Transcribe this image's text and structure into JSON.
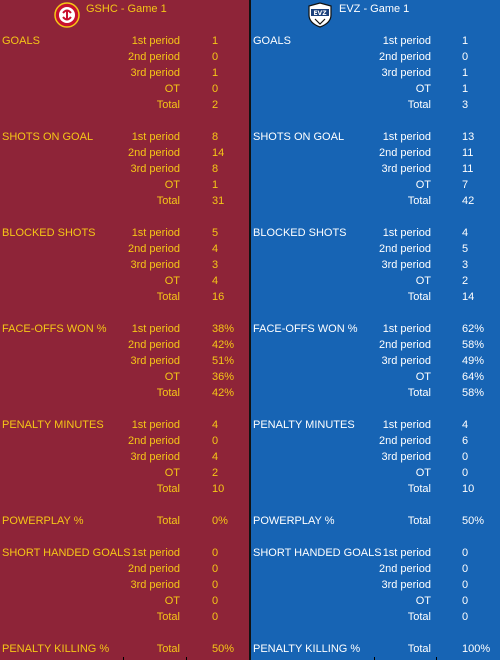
{
  "teams": [
    {
      "title": "GSHC - Game 1",
      "logo": "geneve-servette-logo",
      "sections": [
        {
          "category": "GOALS",
          "rows": [
            {
              "period": "1st period",
              "value": "1"
            },
            {
              "period": "2nd period",
              "value": "0"
            },
            {
              "period": "3rd period",
              "value": "1"
            },
            {
              "period": "OT",
              "value": "0"
            },
            {
              "period": "Total",
              "value": "2"
            }
          ]
        },
        {
          "category": "SHOTS ON GOAL",
          "rows": [
            {
              "period": "1st period",
              "value": "8"
            },
            {
              "period": "2nd period",
              "value": "14"
            },
            {
              "period": "3rd period",
              "value": "8"
            },
            {
              "period": "OT",
              "value": "1"
            },
            {
              "period": "Total",
              "value": "31"
            }
          ]
        },
        {
          "category": "BLOCKED SHOTS",
          "rows": [
            {
              "period": "1st period",
              "value": "5"
            },
            {
              "period": "2nd period",
              "value": "4"
            },
            {
              "period": "3rd period",
              "value": "3"
            },
            {
              "period": "OT",
              "value": "4"
            },
            {
              "period": "Total",
              "value": "16"
            }
          ]
        },
        {
          "category": "FACE-OFFS WON %",
          "rows": [
            {
              "period": "1st period",
              "value": "38%"
            },
            {
              "period": "2nd period",
              "value": "42%"
            },
            {
              "period": "3rd period",
              "value": "51%"
            },
            {
              "period": "OT",
              "value": "36%"
            },
            {
              "period": "Total",
              "value": "42%"
            }
          ]
        },
        {
          "category": "PENALTY MINUTES",
          "rows": [
            {
              "period": "1st period",
              "value": "4"
            },
            {
              "period": "2nd period",
              "value": "0"
            },
            {
              "period": "3rd period",
              "value": "4"
            },
            {
              "period": "OT",
              "value": "2"
            },
            {
              "period": "Total",
              "value": "10"
            }
          ]
        },
        {
          "category": "POWERPLAY %",
          "rows": [
            {
              "period": "Total",
              "value": "0%"
            }
          ]
        },
        {
          "category": "SHORT HANDED GOALS",
          "rows": [
            {
              "period": "1st period",
              "value": "0"
            },
            {
              "period": "2nd period",
              "value": "0"
            },
            {
              "period": "3rd period",
              "value": "0"
            },
            {
              "period": "OT",
              "value": "0"
            },
            {
              "period": "Total",
              "value": "0"
            }
          ]
        },
        {
          "category": "PENALTY KILLING %",
          "rows": [
            {
              "period": "Total",
              "value": "50%"
            }
          ]
        }
      ]
    },
    {
      "title": "EVZ - Game 1",
      "logo": "evz-shield-logo",
      "sections": [
        {
          "category": "GOALS",
          "rows": [
            {
              "period": "1st period",
              "value": "1"
            },
            {
              "period": "2nd period",
              "value": "0"
            },
            {
              "period": "3rd period",
              "value": "1"
            },
            {
              "period": "OT",
              "value": "1"
            },
            {
              "period": "Total",
              "value": "3"
            }
          ]
        },
        {
          "category": "SHOTS ON GOAL",
          "rows": [
            {
              "period": "1st period",
              "value": "13"
            },
            {
              "period": "2nd period",
              "value": "11"
            },
            {
              "period": "3rd period",
              "value": "11"
            },
            {
              "period": "OT",
              "value": "7"
            },
            {
              "period": "Total",
              "value": "42"
            }
          ]
        },
        {
          "category": "BLOCKED SHOTS",
          "rows": [
            {
              "period": "1st period",
              "value": "4"
            },
            {
              "period": "2nd period",
              "value": "5"
            },
            {
              "period": "3rd period",
              "value": "3"
            },
            {
              "period": "OT",
              "value": "2"
            },
            {
              "period": "Total",
              "value": "14"
            }
          ]
        },
        {
          "category": "FACE-OFFS WON %",
          "rows": [
            {
              "period": "1st period",
              "value": "62%"
            },
            {
              "period": "2nd period",
              "value": "58%"
            },
            {
              "period": "3rd period",
              "value": "49%"
            },
            {
              "period": "OT",
              "value": "64%"
            },
            {
              "period": "Total",
              "value": "58%"
            }
          ]
        },
        {
          "category": "PENALTY MINUTES",
          "rows": [
            {
              "period": "1st period",
              "value": "4"
            },
            {
              "period": "2nd period",
              "value": "6"
            },
            {
              "period": "3rd period",
              "value": "0"
            },
            {
              "period": "OT",
              "value": "0"
            },
            {
              "period": "Total",
              "value": "10"
            }
          ]
        },
        {
          "category": "POWERPLAY %",
          "rows": [
            {
              "period": "Total",
              "value": "50%"
            }
          ]
        },
        {
          "category": "SHORT HANDED GOALS",
          "rows": [
            {
              "period": "1st period",
              "value": "0"
            },
            {
              "period": "2nd period",
              "value": "0"
            },
            {
              "period": "3rd period",
              "value": "0"
            },
            {
              "period": "OT",
              "value": "0"
            },
            {
              "period": "Total",
              "value": "0"
            }
          ]
        },
        {
          "category": "PENALTY KILLING %",
          "rows": [
            {
              "period": "Total",
              "value": "100%"
            }
          ]
        }
      ]
    }
  ]
}
